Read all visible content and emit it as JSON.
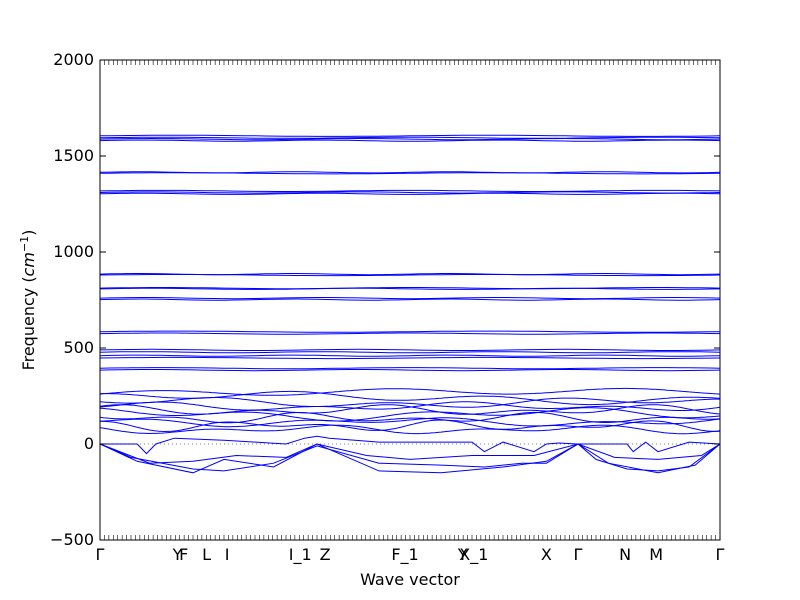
{
  "chart_data": {
    "type": "line",
    "title": "",
    "xlabel": "Wave vector",
    "ylabel_main": "Frequency (",
    "ylabel_unit": "cm",
    "ylabel_exp": "−1",
    "ylabel_close": ")",
    "ylim": [
      -500,
      2000
    ],
    "yticks": [
      -500,
      0,
      500,
      1000,
      1500,
      2000
    ],
    "ytick_labels": [
      "−500",
      "0",
      "500",
      "1000",
      "1500",
      "2000"
    ],
    "xlim": [
      0,
      1
    ],
    "xticks": [
      {
        "label": "Γ",
        "x": 0.0
      },
      {
        "label": "Y",
        "x": 0.125
      },
      {
        "label": "F",
        "x": 0.135
      },
      {
        "label": "L",
        "x": 0.172
      },
      {
        "label": "I",
        "x": 0.205
      },
      {
        "label": "I_1",
        "x": 0.323
      },
      {
        "label": "Z",
        "x": 0.363
      },
      {
        "label": "F_1",
        "x": 0.492
      },
      {
        "label": "Y",
        "x": 0.585
      },
      {
        "label": "X_1",
        "x": 0.603
      },
      {
        "label": "X",
        "x": 0.72
      },
      {
        "label": "Γ",
        "x": 0.771
      },
      {
        "label": "N",
        "x": 0.847
      },
      {
        "label": "M",
        "x": 0.897
      },
      {
        "label": "Γ",
        "x": 1.0
      }
    ],
    "zero_line": true,
    "line_color": "#0000ff",
    "flat_bands": [
      1605,
      1595,
      1588,
      1580,
      1415,
      1410,
      1318,
      1310,
      1303,
      885,
      880,
      812,
      808,
      760,
      752,
      585,
      575,
      490,
      478,
      460,
      448,
      395,
      385
    ],
    "wavy_bands": [
      {
        "base": 260,
        "amp": 30,
        "freq": 3
      },
      {
        "base": 240,
        "amp": 35,
        "freq": 4
      },
      {
        "base": 215,
        "amp": 30,
        "freq": 5
      },
      {
        "base": 195,
        "amp": 25,
        "freq": 6
      },
      {
        "base": 175,
        "amp": 30,
        "freq": 7
      },
      {
        "base": 155,
        "amp": 35,
        "freq": 5
      },
      {
        "base": 135,
        "amp": 30,
        "freq": 8
      },
      {
        "base": 115,
        "amp": 25,
        "freq": 6
      },
      {
        "base": 95,
        "amp": 30,
        "freq": 9
      },
      {
        "base": 75,
        "amp": 25,
        "freq": 7
      }
    ],
    "dip_band": {
      "x": [
        0.0,
        0.06,
        0.075,
        0.09,
        0.12,
        0.2,
        0.3,
        0.33,
        0.35,
        0.37,
        0.45,
        0.6,
        0.62,
        0.65,
        0.7,
        0.72,
        0.74,
        0.77,
        0.85,
        0.86,
        0.88,
        0.9,
        0.95,
        1.0
      ],
      "y": [
        0,
        0,
        -50,
        0,
        30,
        20,
        0,
        30,
        40,
        30,
        10,
        10,
        -40,
        10,
        -40,
        0,
        5,
        0,
        0,
        -40,
        10,
        -40,
        10,
        0
      ]
    },
    "acoustic_bands": [
      {
        "x": [
          0.0,
          0.05,
          0.15,
          0.2,
          0.28,
          0.35,
          0.45,
          0.55,
          0.62,
          0.68,
          0.72,
          0.771,
          0.8,
          0.85,
          0.9,
          0.95,
          1.0
        ],
        "y": [
          0,
          -70,
          -130,
          -140,
          -100,
          -10,
          -100,
          -110,
          -120,
          -100,
          -100,
          0,
          -80,
          -130,
          -140,
          -120,
          0
        ]
      },
      {
        "x": [
          0.0,
          0.06,
          0.15,
          0.2,
          0.28,
          0.35,
          0.45,
          0.55,
          0.65,
          0.72,
          0.771,
          0.82,
          0.9,
          0.96,
          1.0
        ],
        "y": [
          0,
          -90,
          -150,
          -80,
          -120,
          0,
          -140,
          -150,
          -120,
          -90,
          0,
          -100,
          -150,
          -110,
          0
        ]
      },
      {
        "x": [
          0.0,
          0.08,
          0.15,
          0.22,
          0.3,
          0.35,
          0.43,
          0.5,
          0.6,
          0.7,
          0.771,
          0.83,
          0.9,
          0.97,
          1.0
        ],
        "y": [
          0,
          -100,
          -90,
          -60,
          -70,
          0,
          -60,
          -80,
          -60,
          -60,
          0,
          -70,
          -80,
          -60,
          0
        ]
      }
    ]
  }
}
